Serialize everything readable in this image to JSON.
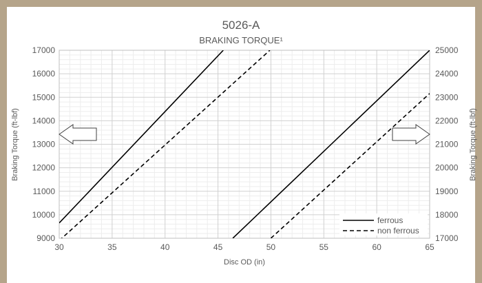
{
  "chart_data": {
    "type": "line",
    "title": "5026-A",
    "subtitle": "BRAKING TORQUE¹",
    "xlabel": "Disc OD (in)",
    "ylabel_left": "Braking Torque (ft-lbf)",
    "ylabel_right": "Braking Torque (ft-lbf)",
    "xlim": [
      30,
      65
    ],
    "ylim_left": [
      9000,
      17000
    ],
    "ylim_right": [
      17000,
      25000
    ],
    "x_ticks": [
      "30",
      "35",
      "40",
      "45",
      "50",
      "55",
      "60",
      "65"
    ],
    "y_ticks_left": [
      "9000",
      "10000",
      "11000",
      "12000",
      "13000",
      "14000",
      "15000",
      "16000",
      "17000"
    ],
    "y_ticks_right": [
      "17000",
      "18000",
      "19000",
      "20000",
      "21000",
      "22000",
      "23000",
      "24000",
      "25000"
    ],
    "grid": true,
    "legend_position": "bottom-right",
    "legend": [
      {
        "name": "ferrous",
        "style": "solid"
      },
      {
        "name": "non ferrous",
        "style": "dashed"
      }
    ],
    "series": [
      {
        "name": "ferrous",
        "axis": "left",
        "style": "solid",
        "x": [
          30,
          45.5
        ],
        "y": [
          9650,
          17000
        ]
      },
      {
        "name": "non ferrous",
        "axis": "left",
        "style": "dashed",
        "x": [
          30,
          49.9
        ],
        "y": [
          8900,
          17000
        ]
      },
      {
        "name": "ferrous",
        "axis": "right",
        "style": "solid",
        "x": [
          46.4,
          65
        ],
        "y": [
          17000,
          25000
        ]
      },
      {
        "name": "non ferrous",
        "axis": "right",
        "style": "dashed",
        "x": [
          50.0,
          65
        ],
        "y": [
          17000,
          23160
        ]
      }
    ],
    "annotations": [
      {
        "type": "arrow",
        "direction": "left",
        "meaning": "left axis"
      },
      {
        "type": "arrow",
        "direction": "right",
        "meaning": "right axis"
      }
    ],
    "colors": {
      "line": "#000000",
      "grid": "#d9d9d9",
      "text": "#595959",
      "frame": "#b5a48a"
    }
  }
}
